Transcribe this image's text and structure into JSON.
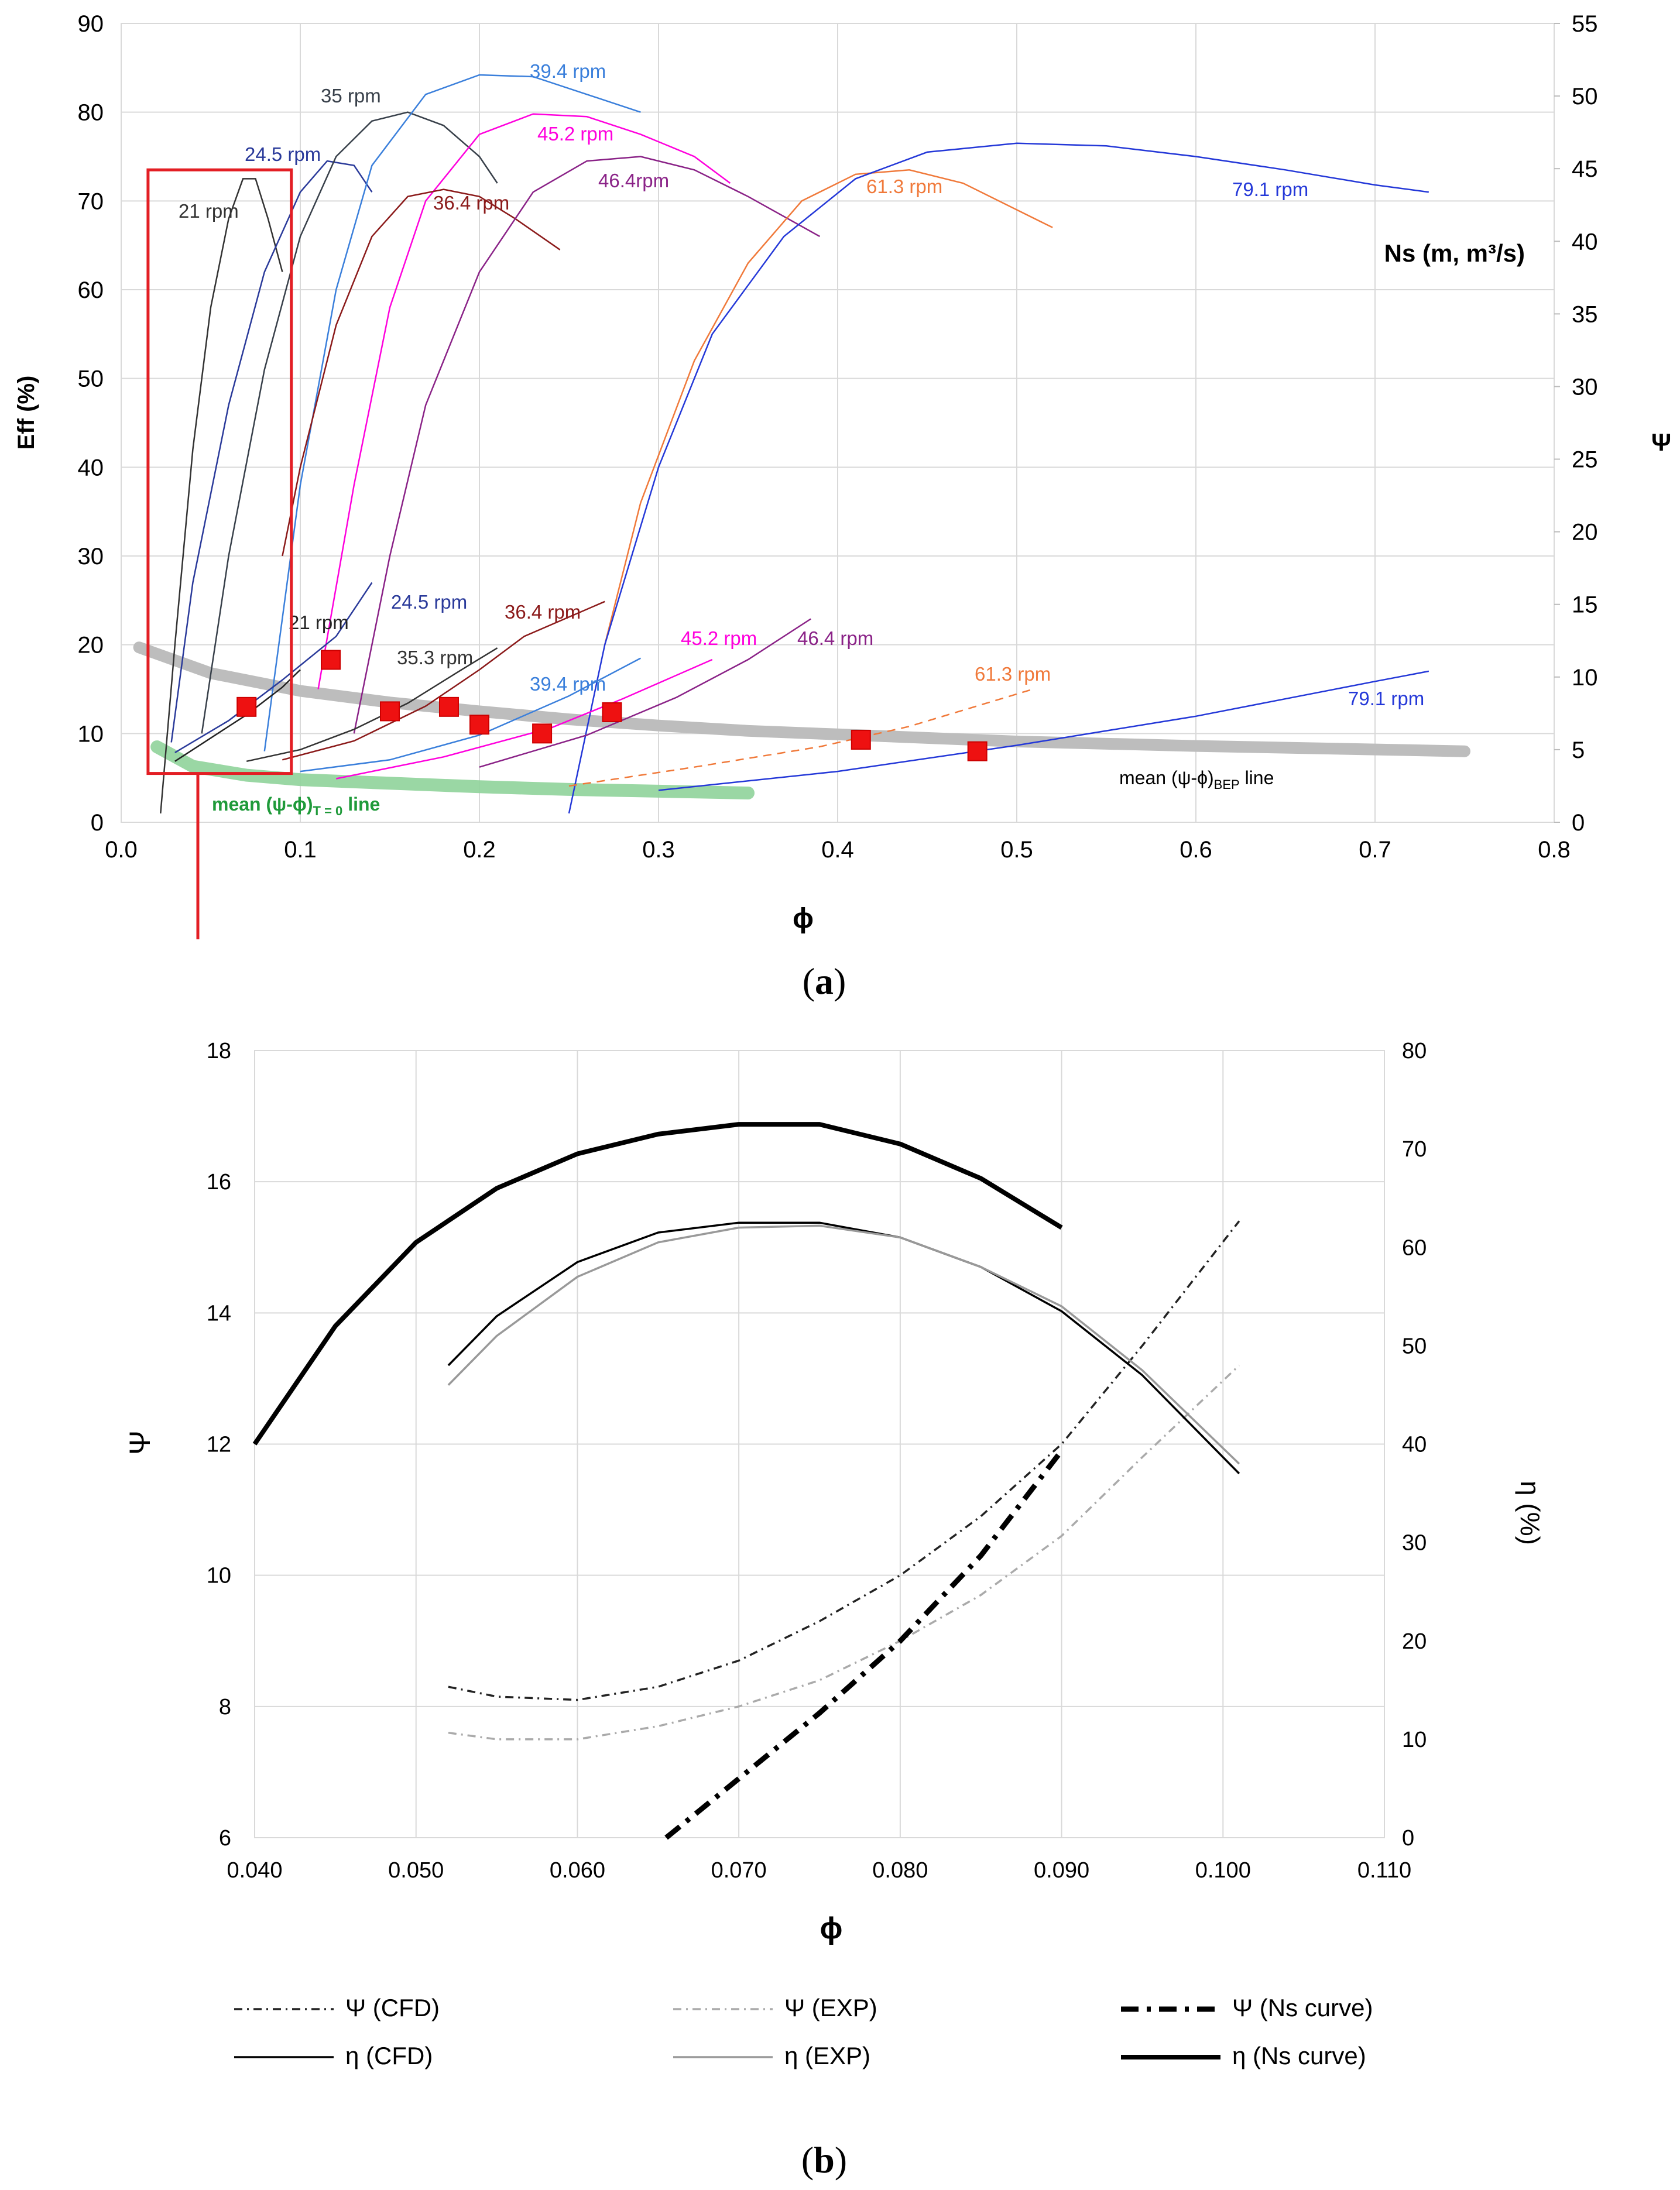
{
  "chart_data": [
    {
      "type": "line",
      "panel": "a",
      "caption_letter": "a",
      "xlabel": "ϕ",
      "ylabel": "Eff (%)",
      "y2label": "Ψ",
      "xlim": [
        0,
        0.8
      ],
      "ylim": [
        0,
        90
      ],
      "y2lim": [
        0,
        55
      ],
      "xticks": [
        0,
        0.1,
        0.2,
        0.3,
        0.4,
        0.5,
        0.6,
        0.7,
        0.8
      ],
      "xtick_labels": [
        "0.0",
        "0.1",
        "0.2",
        "0.3",
        "0.4",
        "0.5",
        "0.6",
        "0.7",
        "0.8"
      ],
      "yticks": [
        0,
        10,
        20,
        30,
        40,
        50,
        60,
        70,
        80,
        90
      ],
      "y2ticks": [
        0,
        5,
        10,
        15,
        20,
        25,
        30,
        35,
        40,
        45,
        50,
        55
      ],
      "grid": true,
      "ns_note": "Ns (m, m³/s)",
      "eff_series": [
        {
          "name": "21 rpm",
          "color": "#333333",
          "points": [
            [
              0.022,
              1
            ],
            [
              0.03,
              20
            ],
            [
              0.04,
              42
            ],
            [
              0.05,
              58
            ],
            [
              0.06,
              68
            ],
            [
              0.068,
              72.5
            ],
            [
              0.075,
              72.5
            ],
            [
              0.082,
              68
            ],
            [
              0.09,
              62
            ]
          ]
        },
        {
          "name": "24.5  rpm",
          "color": "#2a3a9a",
          "points": [
            [
              0.028,
              9
            ],
            [
              0.04,
              27
            ],
            [
              0.06,
              47
            ],
            [
              0.08,
              62
            ],
            [
              0.1,
              71
            ],
            [
              0.115,
              74.5
            ],
            [
              0.13,
              74
            ],
            [
              0.14,
              71
            ]
          ]
        },
        {
          "name": "35 rpm",
          "color": "#38404a",
          "points": [
            [
              0.045,
              10
            ],
            [
              0.06,
              30
            ],
            [
              0.08,
              51
            ],
            [
              0.1,
              66
            ],
            [
              0.12,
              75
            ],
            [
              0.14,
              79
            ],
            [
              0.16,
              80
            ],
            [
              0.18,
              78.5
            ],
            [
              0.2,
              75
            ],
            [
              0.21,
              72
            ]
          ]
        },
        {
          "name": "39.4  rpm",
          "color": "#3a7fdb",
          "points": [
            [
              0.08,
              8
            ],
            [
              0.1,
              38
            ],
            [
              0.12,
              60
            ],
            [
              0.14,
              74
            ],
            [
              0.17,
              82
            ],
            [
              0.2,
              84.2
            ],
            [
              0.23,
              84
            ],
            [
              0.26,
              82
            ],
            [
              0.29,
              80
            ]
          ]
        },
        {
          "name": "45.2 rpm",
          "color": "#ff00dd",
          "points": [
            [
              0.11,
              15
            ],
            [
              0.13,
              38
            ],
            [
              0.15,
              58
            ],
            [
              0.17,
              70
            ],
            [
              0.2,
              77.5
            ],
            [
              0.23,
              79.8
            ],
            [
              0.26,
              79.5
            ],
            [
              0.29,
              77.5
            ],
            [
              0.32,
              75
            ],
            [
              0.34,
              72
            ]
          ]
        },
        {
          "name": "36.4  rpm",
          "color": "#8b1a1a",
          "points": [
            [
              0.09,
              30
            ],
            [
              0.1,
              40
            ],
            [
              0.12,
              56
            ],
            [
              0.14,
              66
            ],
            [
              0.16,
              70.5
            ],
            [
              0.18,
              71.3
            ],
            [
              0.2,
              70.5
            ],
            [
              0.22,
              68
            ],
            [
              0.245,
              64.5
            ]
          ]
        },
        {
          "name": "46.4rpm",
          "color": "#8a2287",
          "points": [
            [
              0.13,
              10
            ],
            [
              0.15,
              30
            ],
            [
              0.17,
              47
            ],
            [
              0.2,
              62
            ],
            [
              0.23,
              71
            ],
            [
              0.26,
              74.5
            ],
            [
              0.29,
              75
            ],
            [
              0.32,
              73.5
            ],
            [
              0.35,
              70.5
            ],
            [
              0.39,
              66
            ]
          ]
        },
        {
          "name": "61.3 rpm",
          "color": "#f0793a",
          "points": [
            [
              0.27,
              20
            ],
            [
              0.29,
              36
            ],
            [
              0.32,
              52
            ],
            [
              0.35,
              63
            ],
            [
              0.38,
              70
            ],
            [
              0.41,
              73
            ],
            [
              0.44,
              73.5
            ],
            [
              0.47,
              72
            ],
            [
              0.5,
              69
            ],
            [
              0.52,
              67
            ]
          ]
        },
        {
          "name": "79.1 rpm",
          "color": "#2438d8",
          "points": [
            [
              0.25,
              1
            ],
            [
              0.27,
              20
            ],
            [
              0.3,
              40
            ],
            [
              0.33,
              55
            ],
            [
              0.37,
              66
            ],
            [
              0.41,
              72.5
            ],
            [
              0.45,
              75.5
            ],
            [
              0.5,
              76.5
            ],
            [
              0.55,
              76.2
            ],
            [
              0.6,
              75
            ],
            [
              0.65,
              73.5
            ],
            [
              0.7,
              71.8
            ],
            [
              0.73,
              71
            ]
          ]
        }
      ],
      "psi_series": [
        {
          "name": "21 rpm",
          "color": "#222222",
          "points": [
            [
              0.03,
              4.2
            ],
            [
              0.05,
              5.8
            ],
            [
              0.07,
              7.4
            ],
            [
              0.09,
              9.3
            ],
            [
              0.1,
              10.5
            ]
          ]
        },
        {
          "name": "24.5 rpm",
          "color": "#2a3a9a",
          "points": [
            [
              0.03,
              4.8
            ],
            [
              0.06,
              7
            ],
            [
              0.09,
              9.8
            ],
            [
              0.12,
              12.8
            ],
            [
              0.14,
              16.5
            ]
          ]
        },
        {
          "name": "35.3 rpm",
          "color": "#333333",
          "points": [
            [
              0.07,
              4.2
            ],
            [
              0.1,
              5
            ],
            [
              0.13,
              6.4
            ],
            [
              0.16,
              8.2
            ],
            [
              0.19,
              10.5
            ],
            [
              0.21,
              12
            ]
          ]
        },
        {
          "name": "36.4 rpm",
          "color": "#8b1a1a",
          "points": [
            [
              0.09,
              4.3
            ],
            [
              0.13,
              5.6
            ],
            [
              0.17,
              8
            ],
            [
              0.2,
              10.5
            ],
            [
              0.225,
              12.8
            ],
            [
              0.27,
              15.2
            ]
          ]
        },
        {
          "name": "39.4  rpm",
          "color": "#3a7fdb",
          "points": [
            [
              0.1,
              3.5
            ],
            [
              0.15,
              4.3
            ],
            [
              0.2,
              6
            ],
            [
              0.25,
              8.7
            ],
            [
              0.29,
              11.3
            ]
          ]
        },
        {
          "name": "45.2 rpm",
          "color": "#ff00dd",
          "points": [
            [
              0.12,
              3
            ],
            [
              0.18,
              4.5
            ],
            [
              0.24,
              6.5
            ],
            [
              0.28,
              8.5
            ],
            [
              0.33,
              11.2
            ]
          ]
        },
        {
          "name": "46.4 rpm",
          "color": "#8a2287",
          "points": [
            [
              0.2,
              3.8
            ],
            [
              0.26,
              6
            ],
            [
              0.31,
              8.6
            ],
            [
              0.35,
              11.2
            ],
            [
              0.385,
              14
            ]
          ]
        },
        {
          "name": "61.3 rpm",
          "color": "#f0793a",
          "points": [
            [
              0.25,
              2.5
            ],
            [
              0.32,
              3.8
            ],
            [
              0.39,
              5.2
            ],
            [
              0.44,
              6.6
            ],
            [
              0.51,
              9.2
            ]
          ],
          "dashed": true
        },
        {
          "name": "79.1 rpm",
          "color": "#2438d8",
          "points": [
            [
              0.3,
              2.2
            ],
            [
              0.4,
              3.5
            ],
            [
              0.5,
              5.3
            ],
            [
              0.6,
              7.3
            ],
            [
              0.7,
              9.7
            ],
            [
              0.73,
              10.4
            ]
          ]
        }
      ],
      "bep_points_eff": [
        [
          0.07,
          13
        ],
        [
          0.117,
          18.3
        ],
        [
          0.15,
          12.5
        ],
        [
          0.183,
          13
        ],
        [
          0.2,
          11
        ],
        [
          0.235,
          10
        ],
        [
          0.274,
          12.4
        ],
        [
          0.413,
          9.3
        ],
        [
          0.478,
          8
        ]
      ],
      "mean_bep_line": {
        "label": "mean (ψ-ϕ)",
        "subscript": "BEP",
        "suffix": " line",
        "points": [
          [
            0.01,
            19.7
          ],
          [
            0.05,
            16.8
          ],
          [
            0.1,
            14.8
          ],
          [
            0.15,
            13.5
          ],
          [
            0.2,
            12.5
          ],
          [
            0.25,
            11.6
          ],
          [
            0.3,
            10.9
          ],
          [
            0.35,
            10.3
          ],
          [
            0.4,
            9.9
          ],
          [
            0.5,
            9.1
          ],
          [
            0.6,
            8.6
          ],
          [
            0.7,
            8.2
          ],
          [
            0.75,
            8
          ]
        ]
      },
      "mean_t0_line": {
        "label": "mean (ψ-ϕ)",
        "subscript": "T = 0",
        "suffix": " line",
        "points": [
          [
            0.02,
            8.5
          ],
          [
            0.04,
            6.3
          ],
          [
            0.07,
            5.3
          ],
          [
            0.1,
            4.8
          ],
          [
            0.15,
            4.4
          ],
          [
            0.2,
            4
          ],
          [
            0.25,
            3.7
          ],
          [
            0.3,
            3.5
          ],
          [
            0.35,
            3.3
          ]
        ]
      },
      "highlight_box": {
        "x_from": 0.015,
        "x_to": 0.095,
        "y_from": 5.5,
        "y_to": 73.5
      }
    },
    {
      "type": "line",
      "panel": "b",
      "caption_letter": "b",
      "xlabel": "ϕ",
      "ylabel": "Ψ",
      "y2label": "η (%)",
      "xlim": [
        0.04,
        0.11
      ],
      "ylim": [
        6,
        18
      ],
      "y2lim": [
        0,
        80
      ],
      "xticks": [
        0.04,
        0.05,
        0.06,
        0.07,
        0.08,
        0.09,
        0.1,
        0.11
      ],
      "xtick_labels": [
        "0.040",
        "0.050",
        "0.060",
        "0.070",
        "0.080",
        "0.090",
        "0.100",
        "0.110"
      ],
      "yticks": [
        6,
        8,
        10,
        12,
        14,
        16,
        18
      ],
      "y2ticks": [
        0,
        10,
        20,
        30,
        40,
        50,
        60,
        70,
        80
      ],
      "grid": true,
      "series": [
        {
          "name": "Ψ (CFD)",
          "axis": "left",
          "style": "dashdot-thin",
          "color": "#222222",
          "x": [
            0.052,
            0.055,
            0.06,
            0.065,
            0.07,
            0.075,
            0.08,
            0.085,
            0.09,
            0.095,
            0.101
          ],
          "y": [
            8.3,
            8.15,
            8.1,
            8.3,
            8.7,
            9.3,
            10.0,
            10.9,
            12.0,
            13.5,
            15.4
          ]
        },
        {
          "name": "Ψ (EXP)",
          "axis": "left",
          "style": "dashdot-thin",
          "color": "#aaaaaa",
          "x": [
            0.052,
            0.055,
            0.06,
            0.065,
            0.07,
            0.075,
            0.08,
            0.085,
            0.09,
            0.095,
            0.101
          ],
          "y": [
            7.6,
            7.5,
            7.5,
            7.7,
            8.0,
            8.4,
            9.0,
            9.7,
            10.6,
            11.8,
            13.2
          ]
        },
        {
          "name": "Ψ (Ns curve)",
          "axis": "left",
          "style": "dashdot-thick",
          "color": "#000000",
          "x": [
            0.0655,
            0.07,
            0.075,
            0.08,
            0.085,
            0.09
          ],
          "y": [
            6.0,
            6.9,
            7.9,
            9.0,
            10.3,
            11.9
          ]
        },
        {
          "name": "η (CFD)",
          "axis": "right",
          "style": "solid-thin",
          "color": "#000000",
          "x": [
            0.052,
            0.055,
            0.06,
            0.065,
            0.07,
            0.075,
            0.08,
            0.085,
            0.09,
            0.095,
            0.101
          ],
          "y": [
            48,
            53,
            58.5,
            61.5,
            62.5,
            62.5,
            61,
            58,
            53.5,
            47,
            37
          ]
        },
        {
          "name": "η (EXP)",
          "axis": "right",
          "style": "solid-thin",
          "color": "#999999",
          "x": [
            0.052,
            0.055,
            0.06,
            0.065,
            0.07,
            0.075,
            0.08,
            0.085,
            0.09,
            0.095,
            0.101
          ],
          "y": [
            46,
            51,
            57,
            60.5,
            62,
            62.2,
            61,
            58,
            54,
            47.5,
            38
          ]
        },
        {
          "name": "η (Ns curve)",
          "axis": "right",
          "style": "solid-thick",
          "color": "#000000",
          "x": [
            0.04,
            0.045,
            0.05,
            0.055,
            0.06,
            0.065,
            0.07,
            0.075,
            0.08,
            0.085,
            0.09
          ],
          "y": [
            40,
            52,
            60.5,
            66,
            69.5,
            71.5,
            72.5,
            72.5,
            70.5,
            67,
            62
          ]
        }
      ],
      "legend": {
        "placement": "bottom",
        "entries": [
          "Ψ (CFD)",
          "Ψ (EXP)",
          "Ψ (Ns curve)",
          "η (CFD)",
          "η (EXP)",
          "η (Ns curve)"
        ]
      }
    }
  ]
}
